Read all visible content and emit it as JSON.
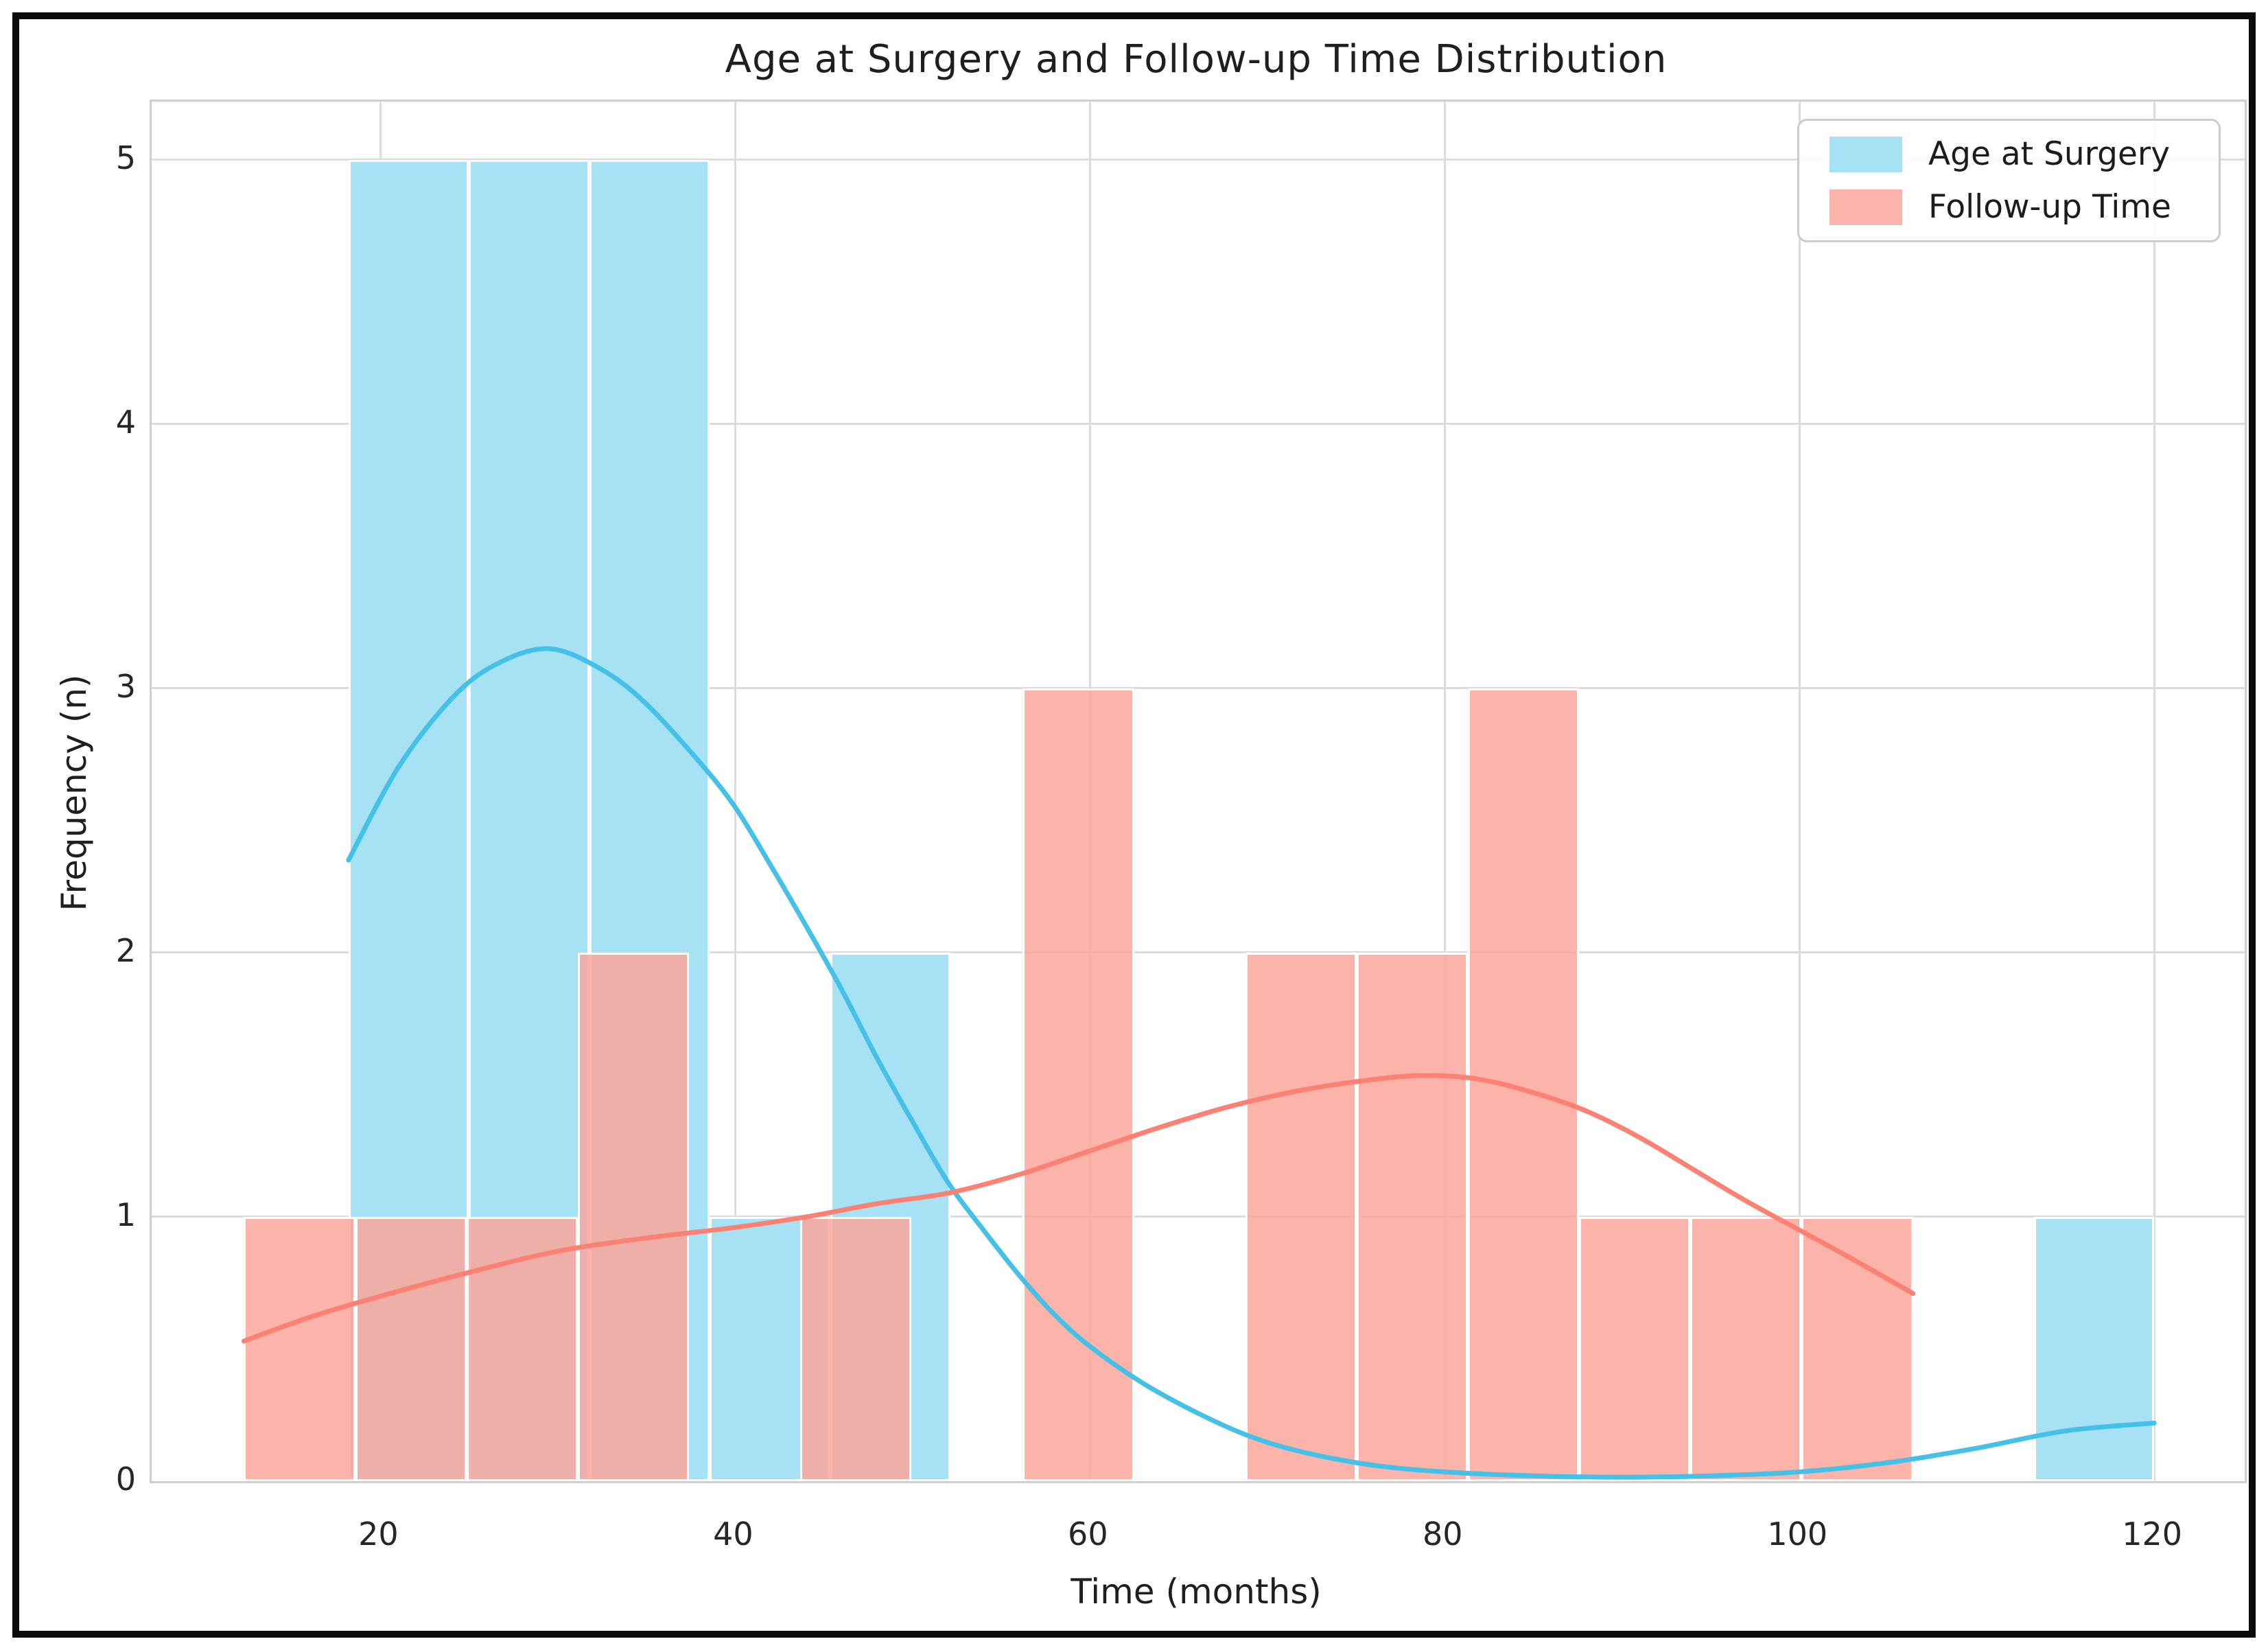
{
  "title": "Age at Surgery and Follow-up Time Distribution",
  "axes": {
    "xlabel": "Time (months)",
    "ylabel": "Frequency (n)",
    "x_ticks": [
      20,
      40,
      60,
      80,
      100,
      120
    ],
    "y_ticks": [
      0,
      1,
      2,
      3,
      4,
      5
    ],
    "xlim": [
      7.1,
      125.1
    ],
    "ylim": [
      0,
      5.22
    ],
    "grid": true,
    "gridline_color": "#dcdcdc",
    "frame_color": "#cfcfcf"
  },
  "legend": {
    "position": "upper-right",
    "items": [
      {
        "label": "Age at Surgery",
        "swatch_color": "#A6E1F4"
      },
      {
        "label": "Follow-up Time",
        "swatch_color": "#FCB3AA"
      }
    ]
  },
  "chart_data": {
    "type": "bar",
    "subtype": "overlaid-histograms-with-kde",
    "title": "Age at Surgery and Follow-up Time Distribution",
    "xlabel": "Time (months)",
    "ylabel": "Frequency (n)",
    "xlim": [
      7.1,
      125.1
    ],
    "ylim": [
      0,
      5.22
    ],
    "x_ticks": [
      20,
      40,
      60,
      80,
      100,
      120
    ],
    "y_ticks": [
      0,
      1,
      2,
      3,
      4,
      5
    ],
    "series": [
      {
        "name": "Age at Surgery",
        "bar_color": "#A6E1F4",
        "bar_css_fill": "rgba(166,225,244,1)",
        "kde_color": "#45C1E8",
        "bin_start": 18.2,
        "bin_width": 6.787,
        "counts": [
          5,
          5,
          5,
          1,
          2,
          0,
          0,
          0,
          0,
          0,
          0,
          0,
          0,
          0,
          1
        ],
        "kde_points": [
          [
            18.2,
            2.35
          ],
          [
            21,
            2.7
          ],
          [
            24,
            2.96
          ],
          [
            26.5,
            3.09
          ],
          [
            29.5,
            3.15
          ],
          [
            32.5,
            3.07
          ],
          [
            35,
            2.94
          ],
          [
            38,
            2.72
          ],
          [
            40,
            2.55
          ],
          [
            42,
            2.33
          ],
          [
            44,
            2.1
          ],
          [
            46,
            1.86
          ],
          [
            48,
            1.6
          ],
          [
            50,
            1.36
          ],
          [
            52,
            1.13
          ],
          [
            54,
            0.95
          ],
          [
            56,
            0.78
          ],
          [
            58,
            0.63
          ],
          [
            60,
            0.51
          ],
          [
            63,
            0.37
          ],
          [
            66,
            0.26
          ],
          [
            69,
            0.17
          ],
          [
            72,
            0.11
          ],
          [
            76,
            0.06
          ],
          [
            80,
            0.035
          ],
          [
            85,
            0.02
          ],
          [
            90,
            0.015
          ],
          [
            95,
            0.02
          ],
          [
            100,
            0.035
          ],
          [
            105,
            0.07
          ],
          [
            110,
            0.125
          ],
          [
            115,
            0.19
          ],
          [
            120,
            0.22
          ]
        ]
      },
      {
        "name": "Follow-up Time",
        "bar_color": "#FCB3AA",
        "bar_css_fill": "rgba(252,166,155,0.85)",
        "kde_color": "#FB8174",
        "bin_start": 12.3,
        "bin_width": 6.273,
        "counts": [
          1,
          1,
          1,
          2,
          0,
          1,
          0,
          3,
          0,
          2,
          2,
          3,
          1,
          1,
          1
        ],
        "kde_points": [
          [
            12.3,
            0.53
          ],
          [
            16,
            0.62
          ],
          [
            20,
            0.7
          ],
          [
            25,
            0.79
          ],
          [
            30,
            0.87
          ],
          [
            35,
            0.92
          ],
          [
            40,
            0.96
          ],
          [
            44,
            1.0
          ],
          [
            48,
            1.05
          ],
          [
            52,
            1.09
          ],
          [
            56,
            1.16
          ],
          [
            60,
            1.25
          ],
          [
            64,
            1.34
          ],
          [
            68,
            1.42
          ],
          [
            72,
            1.48
          ],
          [
            76,
            1.52
          ],
          [
            79,
            1.535
          ],
          [
            82,
            1.52
          ],
          [
            85,
            1.47
          ],
          [
            88,
            1.4
          ],
          [
            91,
            1.3
          ],
          [
            94,
            1.18
          ],
          [
            97,
            1.06
          ],
          [
            100,
            0.95
          ],
          [
            103,
            0.84
          ],
          [
            106.4,
            0.71
          ]
        ]
      }
    ]
  }
}
